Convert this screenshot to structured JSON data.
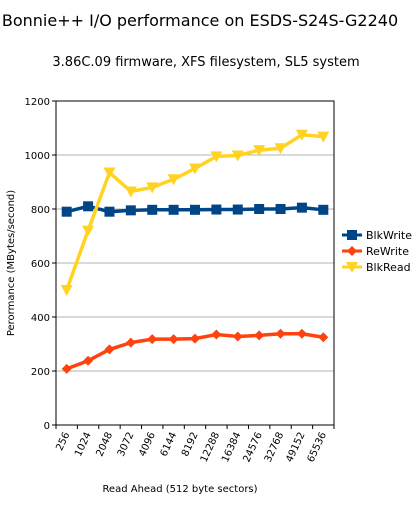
{
  "chart_data": {
    "type": "line",
    "title": "Bonnie++ I/O performance on ESDS-S24S-G2240",
    "subtitle": "3.86C.09 firmware, XFS filesystem, SL5 system",
    "xlabel": "Read Ahead (512 byte sectors)",
    "ylabel": "Perormance (MBytes/second)",
    "ylim": [
      0,
      1200
    ],
    "yticks": [
      0,
      200,
      400,
      600,
      800,
      1000,
      1200
    ],
    "grid": "horizontal",
    "legend_position": "right",
    "categories": [
      "256",
      "1024",
      "2048",
      "3072",
      "4096",
      "6144",
      "8192",
      "12288",
      "16384",
      "24576",
      "32768",
      "49152",
      "65536"
    ],
    "series": [
      {
        "name": "BlkWrite",
        "color": "#004586",
        "marker": "square",
        "values": [
          790,
          810,
          790,
          795,
          797,
          797,
          797,
          798,
          798,
          800,
          800,
          805,
          797
        ]
      },
      {
        "name": "ReWrite",
        "color": "#ff420e",
        "marker": "diamond",
        "values": [
          208,
          238,
          280,
          305,
          318,
          318,
          320,
          335,
          328,
          332,
          338,
          338,
          325
        ]
      },
      {
        "name": "BlkRead",
        "color": "#ffd320",
        "marker": "triangle-down",
        "values": [
          500,
          720,
          935,
          865,
          880,
          910,
          950,
          995,
          998,
          1018,
          1025,
          1075,
          1068
        ]
      }
    ]
  }
}
